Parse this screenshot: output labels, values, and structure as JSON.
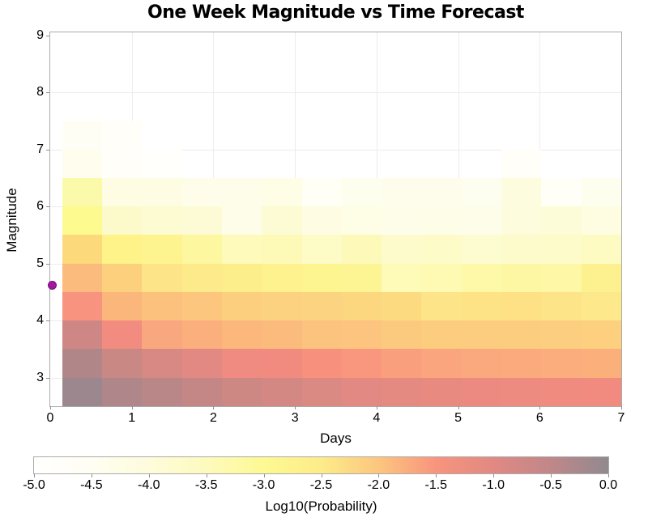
{
  "chart_data": {
    "type": "heatmap",
    "title": "One Week Magnitude vs Time Forecast",
    "xlabel": "Days",
    "ylabel": "Magnitude",
    "colorbar_label": "Log10(Probability)",
    "xlim": [
      0,
      7
    ],
    "ylim": [
      2.5,
      9.05
    ],
    "x_ticks": [
      0,
      1,
      2,
      3,
      4,
      5,
      6,
      7
    ],
    "x_tick_labels": [
      "0",
      "1",
      "2",
      "3",
      "4",
      "5",
      "6",
      "7"
    ],
    "y_ticks": [
      3,
      4,
      5,
      6,
      7,
      8,
      9
    ],
    "y_tick_labels": [
      "3",
      "4",
      "5",
      "6",
      "7",
      "8",
      "9"
    ],
    "x_gridlines": [
      1,
      2,
      3,
      4,
      5,
      6
    ],
    "y_gridlines": [
      3,
      4,
      5,
      6,
      7,
      8
    ],
    "grid_on": true,
    "x_bin_edges_days": [
      0.146,
      0.636,
      1.125,
      1.615,
      2.104,
      2.594,
      3.083,
      3.573,
      4.062,
      4.552,
      5.042,
      5.531,
      6.021,
      6.51,
      7.0
    ],
    "y_bin_edges_top_to_bottom": [
      7.5,
      7.0,
      6.5,
      6.0,
      5.5,
      5.0,
      4.5,
      4.0,
      3.5,
      3.0,
      2.5
    ],
    "row_order": "top_to_bottom_magnitude",
    "cell_colors": [
      [
        "#FFFEF4",
        "#FFFEF8",
        "#FFFFFF",
        "#FFFFFF",
        "#FFFFFF",
        "#FFFFFF",
        "#FFFFFF",
        "#FFFFFF",
        "#FFFFFF",
        "#FFFFFF",
        "#FFFFFF",
        "#FFFFFF",
        "#FFFFFF",
        "#FFFFFF"
      ],
      [
        "#FEFDEE",
        "#FFFEF8",
        "#FFFFFC",
        "#FFFFFF",
        "#FFFFFF",
        "#FFFFFF",
        "#FFFFFF",
        "#FFFFFF",
        "#FFFFFF",
        "#FFFFFF",
        "#FFFFFF",
        "#FFFEF9",
        "#FFFFFF",
        "#FFFFFF"
      ],
      [
        "#FBFAAB",
        "#FEFCE2",
        "#FEFCE3",
        "#FEFDE9",
        "#FEFDEA",
        "#FEFDE6",
        "#FFFFF5",
        "#FEFEEF",
        "#FEFDEC",
        "#FEFDEC",
        "#FEFEF0",
        "#FDFCDE",
        "#FFFFF7",
        "#FEFEEF"
      ],
      [
        "#FDFA8F",
        "#FCFACA",
        "#FDFBD1",
        "#FDFBD5",
        "#FEFDE9",
        "#FDFBD3",
        "#FEFDE3",
        "#FEFDE5",
        "#FEFDE9",
        "#FEFDE7",
        "#FEFDEA",
        "#FDFCDC",
        "#FDFCD8",
        "#FEFDE2"
      ],
      [
        "#FCD97B",
        "#FDF388",
        "#FDF490",
        "#FDF79F",
        "#FDFABB",
        "#FDFAB8",
        "#FDFBC6",
        "#FDFAB9",
        "#FDFBCC",
        "#FDFBC7",
        "#FDFBD0",
        "#FDFBCC",
        "#FDFBC9",
        "#FDFBC2"
      ],
      [
        "#FBBB7C",
        "#FCD07D",
        "#FDE488",
        "#FDEA8A",
        "#FDEE8C",
        "#FDF28E",
        "#FDF590",
        "#FDF593",
        "#FEFAB8",
        "#FEFAB3",
        "#FDF9A8",
        "#FDF7A3",
        "#FDF7A6",
        "#FDF18F"
      ],
      [
        "#F8937F",
        "#FBB67C",
        "#FCC17D",
        "#FCC67E",
        "#FCCF7F",
        "#FCD17F",
        "#FCD380",
        "#FCD77F",
        "#FCDA80",
        "#FDE489",
        "#FDE386",
        "#FDE184",
        "#FDE489",
        "#FDE88C"
      ],
      [
        "#CE8784",
        "#F28B80",
        "#F9A77E",
        "#FAAF7D",
        "#FBB77C",
        "#FBBB7C",
        "#FCC37E",
        "#FCC47E",
        "#FCCA7E",
        "#FCCC7F",
        "#FCCC7F",
        "#FCCD7F",
        "#FCCE7F",
        "#FCD07F"
      ],
      [
        "#B08689",
        "#C98884",
        "#D98983",
        "#E18982",
        "#EF8B80",
        "#F18B80",
        "#F7917E",
        "#F9977E",
        "#FA9F7D",
        "#FAA57D",
        "#FAA87D",
        "#FAAA7D",
        "#FBAD7D",
        "#FBB07C"
      ],
      [
        "#9C878E",
        "#AF868A",
        "#BA8788",
        "#C48786",
        "#CD8884",
        "#D38883",
        "#DA8983",
        "#E18982",
        "#E58A81",
        "#E98A81",
        "#EC8A81",
        "#EE8B80",
        "#F08B80",
        "#F18B80"
      ]
    ],
    "cell_values_log10_approx": [
      [
        -4.6,
        -4.8,
        -5,
        -5,
        -5,
        -5,
        -5,
        -5,
        -5,
        -5,
        -5,
        -5,
        -5,
        -5
      ],
      [
        -4.4,
        -4.75,
        -4.9,
        -5,
        -5,
        -5,
        -5,
        -5,
        -5,
        -5,
        -5,
        -4.85,
        -5,
        -5
      ],
      [
        -3.3,
        -4.0,
        -4.0,
        -4.1,
        -4.1,
        -4.05,
        -4.5,
        -4.35,
        -4.3,
        -4.3,
        -4.4,
        -3.95,
        -4.55,
        -4.35
      ],
      [
        -3.0,
        -3.75,
        -3.8,
        -3.85,
        -4.15,
        -3.8,
        -4.05,
        -4.1,
        -4.15,
        -4.1,
        -4.15,
        -4.0,
        -3.9,
        -4.05
      ],
      [
        -2.25,
        -2.6,
        -2.65,
        -2.75,
        -2.95,
        -2.9,
        -3.0,
        -2.95,
        -3.05,
        -3.0,
        -3.1,
        -3.05,
        -3.0,
        -2.95
      ],
      [
        -1.9,
        -2.1,
        -2.4,
        -2.45,
        -2.5,
        -2.55,
        -2.6,
        -2.6,
        -3.0,
        -2.95,
        -2.9,
        -2.85,
        -2.87,
        -2.6
      ],
      [
        -1.5,
        -1.85,
        -1.95,
        -2.0,
        -2.05,
        -2.1,
        -2.1,
        -2.15,
        -2.2,
        -2.4,
        -2.38,
        -2.35,
        -2.4,
        -2.45
      ],
      [
        -0.7,
        -1.35,
        -1.6,
        -1.65,
        -1.7,
        -1.75,
        -1.85,
        -1.85,
        -1.9,
        -1.9,
        -1.9,
        -1.92,
        -1.93,
        -1.95
      ],
      [
        -0.35,
        -0.65,
        -0.85,
        -1.0,
        -1.2,
        -1.22,
        -1.3,
        -1.35,
        -1.45,
        -1.5,
        -1.52,
        -1.55,
        -1.58,
        -1.6
      ],
      [
        -0.15,
        -0.3,
        -0.42,
        -0.52,
        -0.6,
        -0.65,
        -0.72,
        -0.8,
        -0.85,
        -0.9,
        -0.93,
        -0.97,
        -1.0,
        -1.02
      ]
    ],
    "colorbar": {
      "min": -5.0,
      "max": 0.0,
      "tick_values": [
        -5.0,
        -4.5,
        -4.0,
        -3.5,
        -3.0,
        -2.5,
        -2.0,
        -1.5,
        -1.0,
        -0.5,
        0.0
      ],
      "tick_labels": [
        "-5.0",
        "-4.5",
        "-4.0",
        "-3.5",
        "-3.0",
        "-2.5",
        "-2.0",
        "-1.5",
        "-1.0",
        "-0.5",
        "0.0"
      ],
      "gradient_stops": [
        {
          "pos": 0.0,
          "color": "#FFFFFF"
        },
        {
          "pos": 0.1,
          "color": "#FFFEF2"
        },
        {
          "pos": 0.2,
          "color": "#FEFCDC"
        },
        {
          "pos": 0.3,
          "color": "#FDFABE"
        },
        {
          "pos": 0.4,
          "color": "#FDF993"
        },
        {
          "pos": 0.5,
          "color": "#FDEC89"
        },
        {
          "pos": 0.6,
          "color": "#FCC67E"
        },
        {
          "pos": 0.7,
          "color": "#F8947E"
        },
        {
          "pos": 0.8,
          "color": "#E18982"
        },
        {
          "pos": 0.9,
          "color": "#C08789"
        },
        {
          "pos": 1.0,
          "color": "#8F8A8F"
        }
      ]
    },
    "mainshock": {
      "day": 0.02,
      "magnitude": 4.62,
      "fill": "#A1189E",
      "edge": "#7A0F7C"
    },
    "colors": {
      "frame": "#ABABAB",
      "grid": "#ECECEC",
      "tick": "#8F8F8F",
      "text": "#000000",
      "background": "#FFFFFF"
    }
  }
}
